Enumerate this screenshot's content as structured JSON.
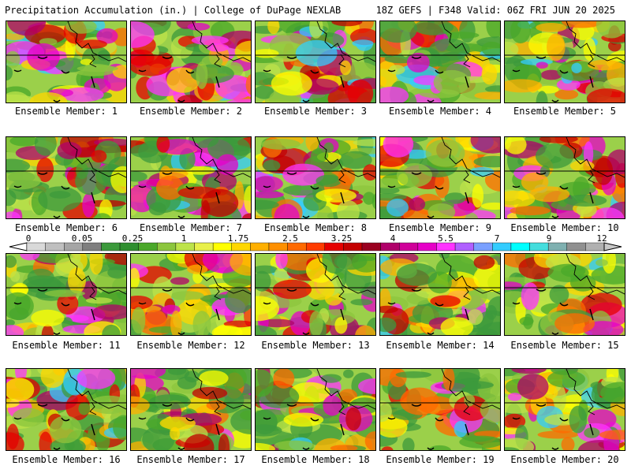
{
  "header": {
    "left": "Precipitation Accumulation (in.) | College of DuPage NEXLAB",
    "right": "18Z GEFS | F348 Valid: 06Z FRI JUN 20 2025"
  },
  "caption_prefix": "Ensemble Member: ",
  "members": [
    {
      "label": "Ensemble Member: 1"
    },
    {
      "label": "Ensemble Member: 2"
    },
    {
      "label": "Ensemble Member: 3"
    },
    {
      "label": "Ensemble Member: 4"
    },
    {
      "label": "Ensemble Member: 5"
    },
    {
      "label": "Ensemble Member: 6"
    },
    {
      "label": "Ensemble Member: 7"
    },
    {
      "label": "Ensemble Member: 8"
    },
    {
      "label": "Ensemble Member: 9"
    },
    {
      "label": "Ensemble Member: 10"
    },
    {
      "label": "Ensemble Member: 11"
    },
    {
      "label": "Ensemble Member: 12"
    },
    {
      "label": "Ensemble Member: 13"
    },
    {
      "label": "Ensemble Member: 14"
    },
    {
      "label": "Ensemble Member: 15"
    },
    {
      "label": "Ensemble Member: 16"
    },
    {
      "label": "Ensemble Member: 17"
    },
    {
      "label": "Ensemble Member: 18"
    },
    {
      "label": "Ensemble Member: 19"
    },
    {
      "label": "Ensemble Member: 20"
    }
  ],
  "colorbar": {
    "labels": [
      "0",
      "0.05",
      "0.25",
      "1",
      "1.75",
      "2.5",
      "3.25",
      "4",
      "5.5",
      "7",
      "9",
      "12"
    ],
    "colors": [
      "#d9d9d9",
      "#bfbfbf",
      "#a5a5a5",
      "#7f7f7f",
      "#3c9a3c",
      "#2f8f2f",
      "#4aa82a",
      "#8cc63e",
      "#bde34a",
      "#e8f04a",
      "#ffff00",
      "#ffd700",
      "#ffb000",
      "#ff9000",
      "#ff6a00",
      "#ff3c00",
      "#e60000",
      "#c40000",
      "#9a0020",
      "#b0006a",
      "#d0009a",
      "#e600c8",
      "#ff33ff",
      "#b060ff",
      "#7aa0ff",
      "#33ccff",
      "#00ffff",
      "#44dddd",
      "#7fb0b0",
      "#909090",
      "#b0b0b0"
    ]
  }
}
